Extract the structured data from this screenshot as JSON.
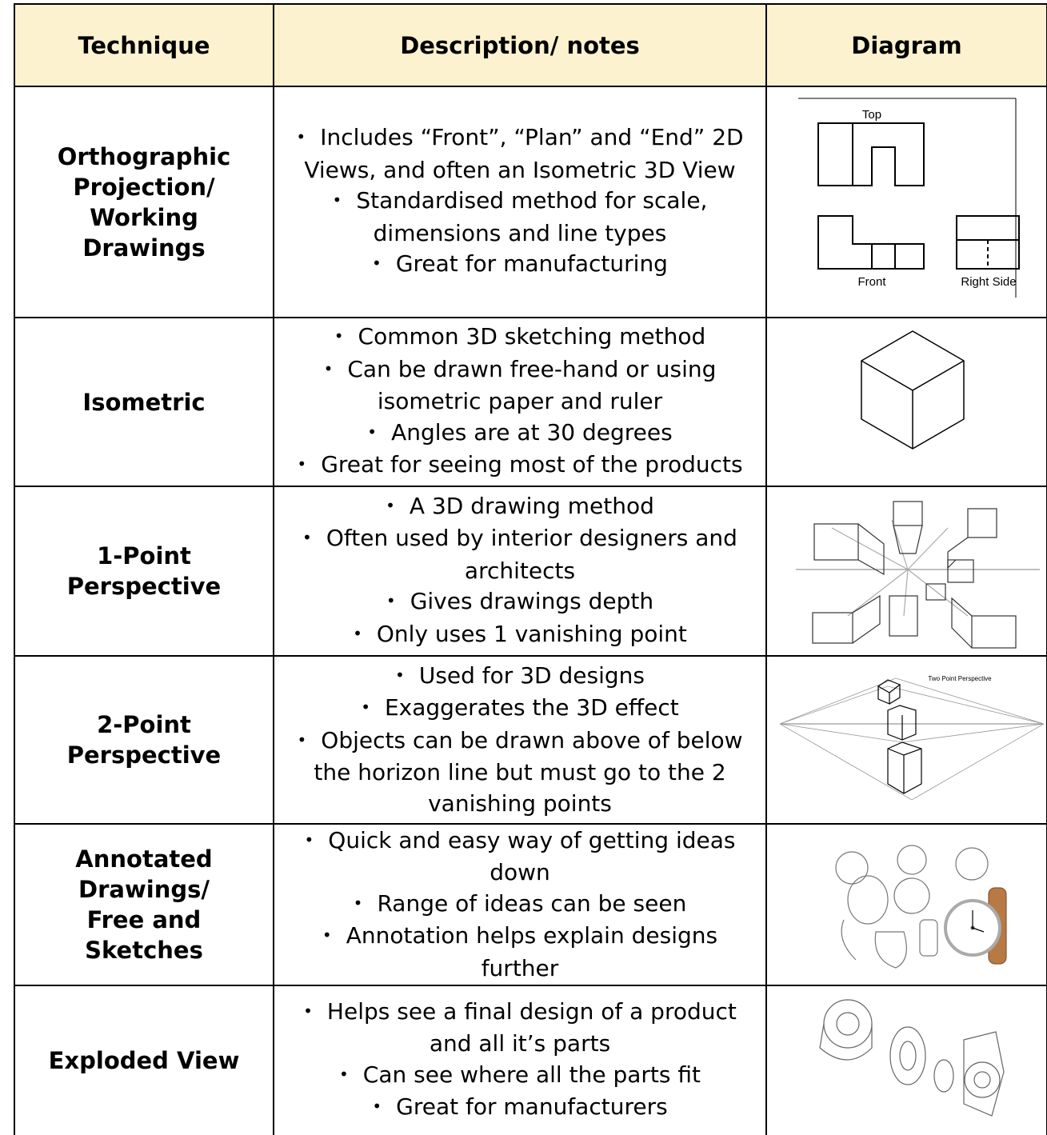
{
  "table": {
    "header": [
      "Technique",
      "Description/ notes",
      "Diagram"
    ],
    "rows": [
      {
        "technique": "Orthographic Projection/ Working Drawings",
        "notes": [
          "Includes “Front”, “Plan” and “End” 2D Views, and often an Isometric 3D View",
          "Standardised method for scale, dimensions and line types",
          "Great for manufacturing"
        ]
      },
      {
        "technique": "Isometric",
        "notes": [
          "Common 3D sketching method",
          "Can be drawn free-hand or using isometric paper and ruler",
          "Angles are at 30 degrees",
          "Great for seeing most of the products"
        ]
      },
      {
        "technique": "1-Point Perspective",
        "notes": [
          "A 3D drawing method",
          "Often used by interior designers and architects",
          "Gives drawings depth",
          "Only uses 1 vanishing point"
        ]
      },
      {
        "technique": "2-Point Perspective",
        "notes": [
          "Used for 3D designs",
          "Exaggerates the 3D effect",
          "Objects can be drawn above of below the horizon line but must go to the 2 vanishing points"
        ]
      },
      {
        "technique": "Annotated Drawings/ Free and Sketches",
        "notes": [
          "Quick and easy way of getting ideas down",
          "Range of ideas can be seen",
          "Annotation helps explain designs further"
        ]
      },
      {
        "technique": "Exploded View",
        "notes": [
          "Helps see a final design of a product and all it’s parts",
          "Can see where all the parts fit",
          "Great for manufacturers"
        ]
      }
    ]
  },
  "diagrams": {
    "orthographic": {
      "labels": [
        "Top",
        "Front",
        "Right Side"
      ]
    },
    "two_point": {
      "title": "Two Point Perspective"
    }
  }
}
